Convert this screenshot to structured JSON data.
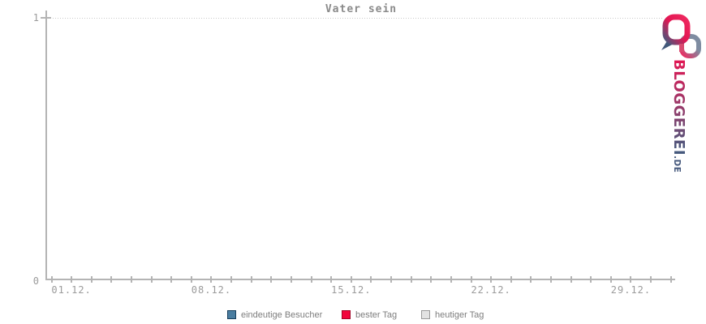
{
  "title": "Vater sein",
  "y_axis": {
    "labels": {
      "top": "1",
      "bottom": "0"
    }
  },
  "x_axis": {
    "tick_labels": [
      "01.12.",
      "08.12.",
      "15.12.",
      "22.12.",
      "29.12."
    ]
  },
  "legend": [
    {
      "label": "eindeutige Besucher",
      "color": "#4a7da0",
      "border": "#173f5c"
    },
    {
      "label": "bester Tag",
      "color": "#f2053c",
      "border": "#a40427"
    },
    {
      "label": "heutiger Tag",
      "color": "#e2e2e2",
      "border": "#999999"
    }
  ],
  "logo": {
    "text_main": "BLOGGEREI",
    "text_suffix": ".DE",
    "color_top": "#e31653",
    "color_pink": "#ef2a60",
    "color_mid": "#8f3f6d",
    "color_bottom": "#46597d",
    "color_slate": "#7e8ca1"
  },
  "chart_data": {
    "type": "line",
    "title": "Vater sein",
    "xlabel": "",
    "ylabel": "",
    "ylim": [
      0,
      1
    ],
    "x_tick_labels": [
      "01.12.",
      "08.12.",
      "15.12.",
      "22.12.",
      "29.12."
    ],
    "grid": "dotted line at y=1 only",
    "legend_position": "bottom-center",
    "series": [
      {
        "name": "eindeutige Besucher",
        "values": []
      },
      {
        "name": "bester Tag",
        "values": []
      },
      {
        "name": "heutiger Tag",
        "values": []
      }
    ]
  },
  "layout": {
    "tick_start_x": 62.5,
    "tick_spacing": 24.62,
    "tick_count": 32,
    "labeled_tick_indices": [
      1,
      8,
      15,
      22,
      29
    ]
  }
}
